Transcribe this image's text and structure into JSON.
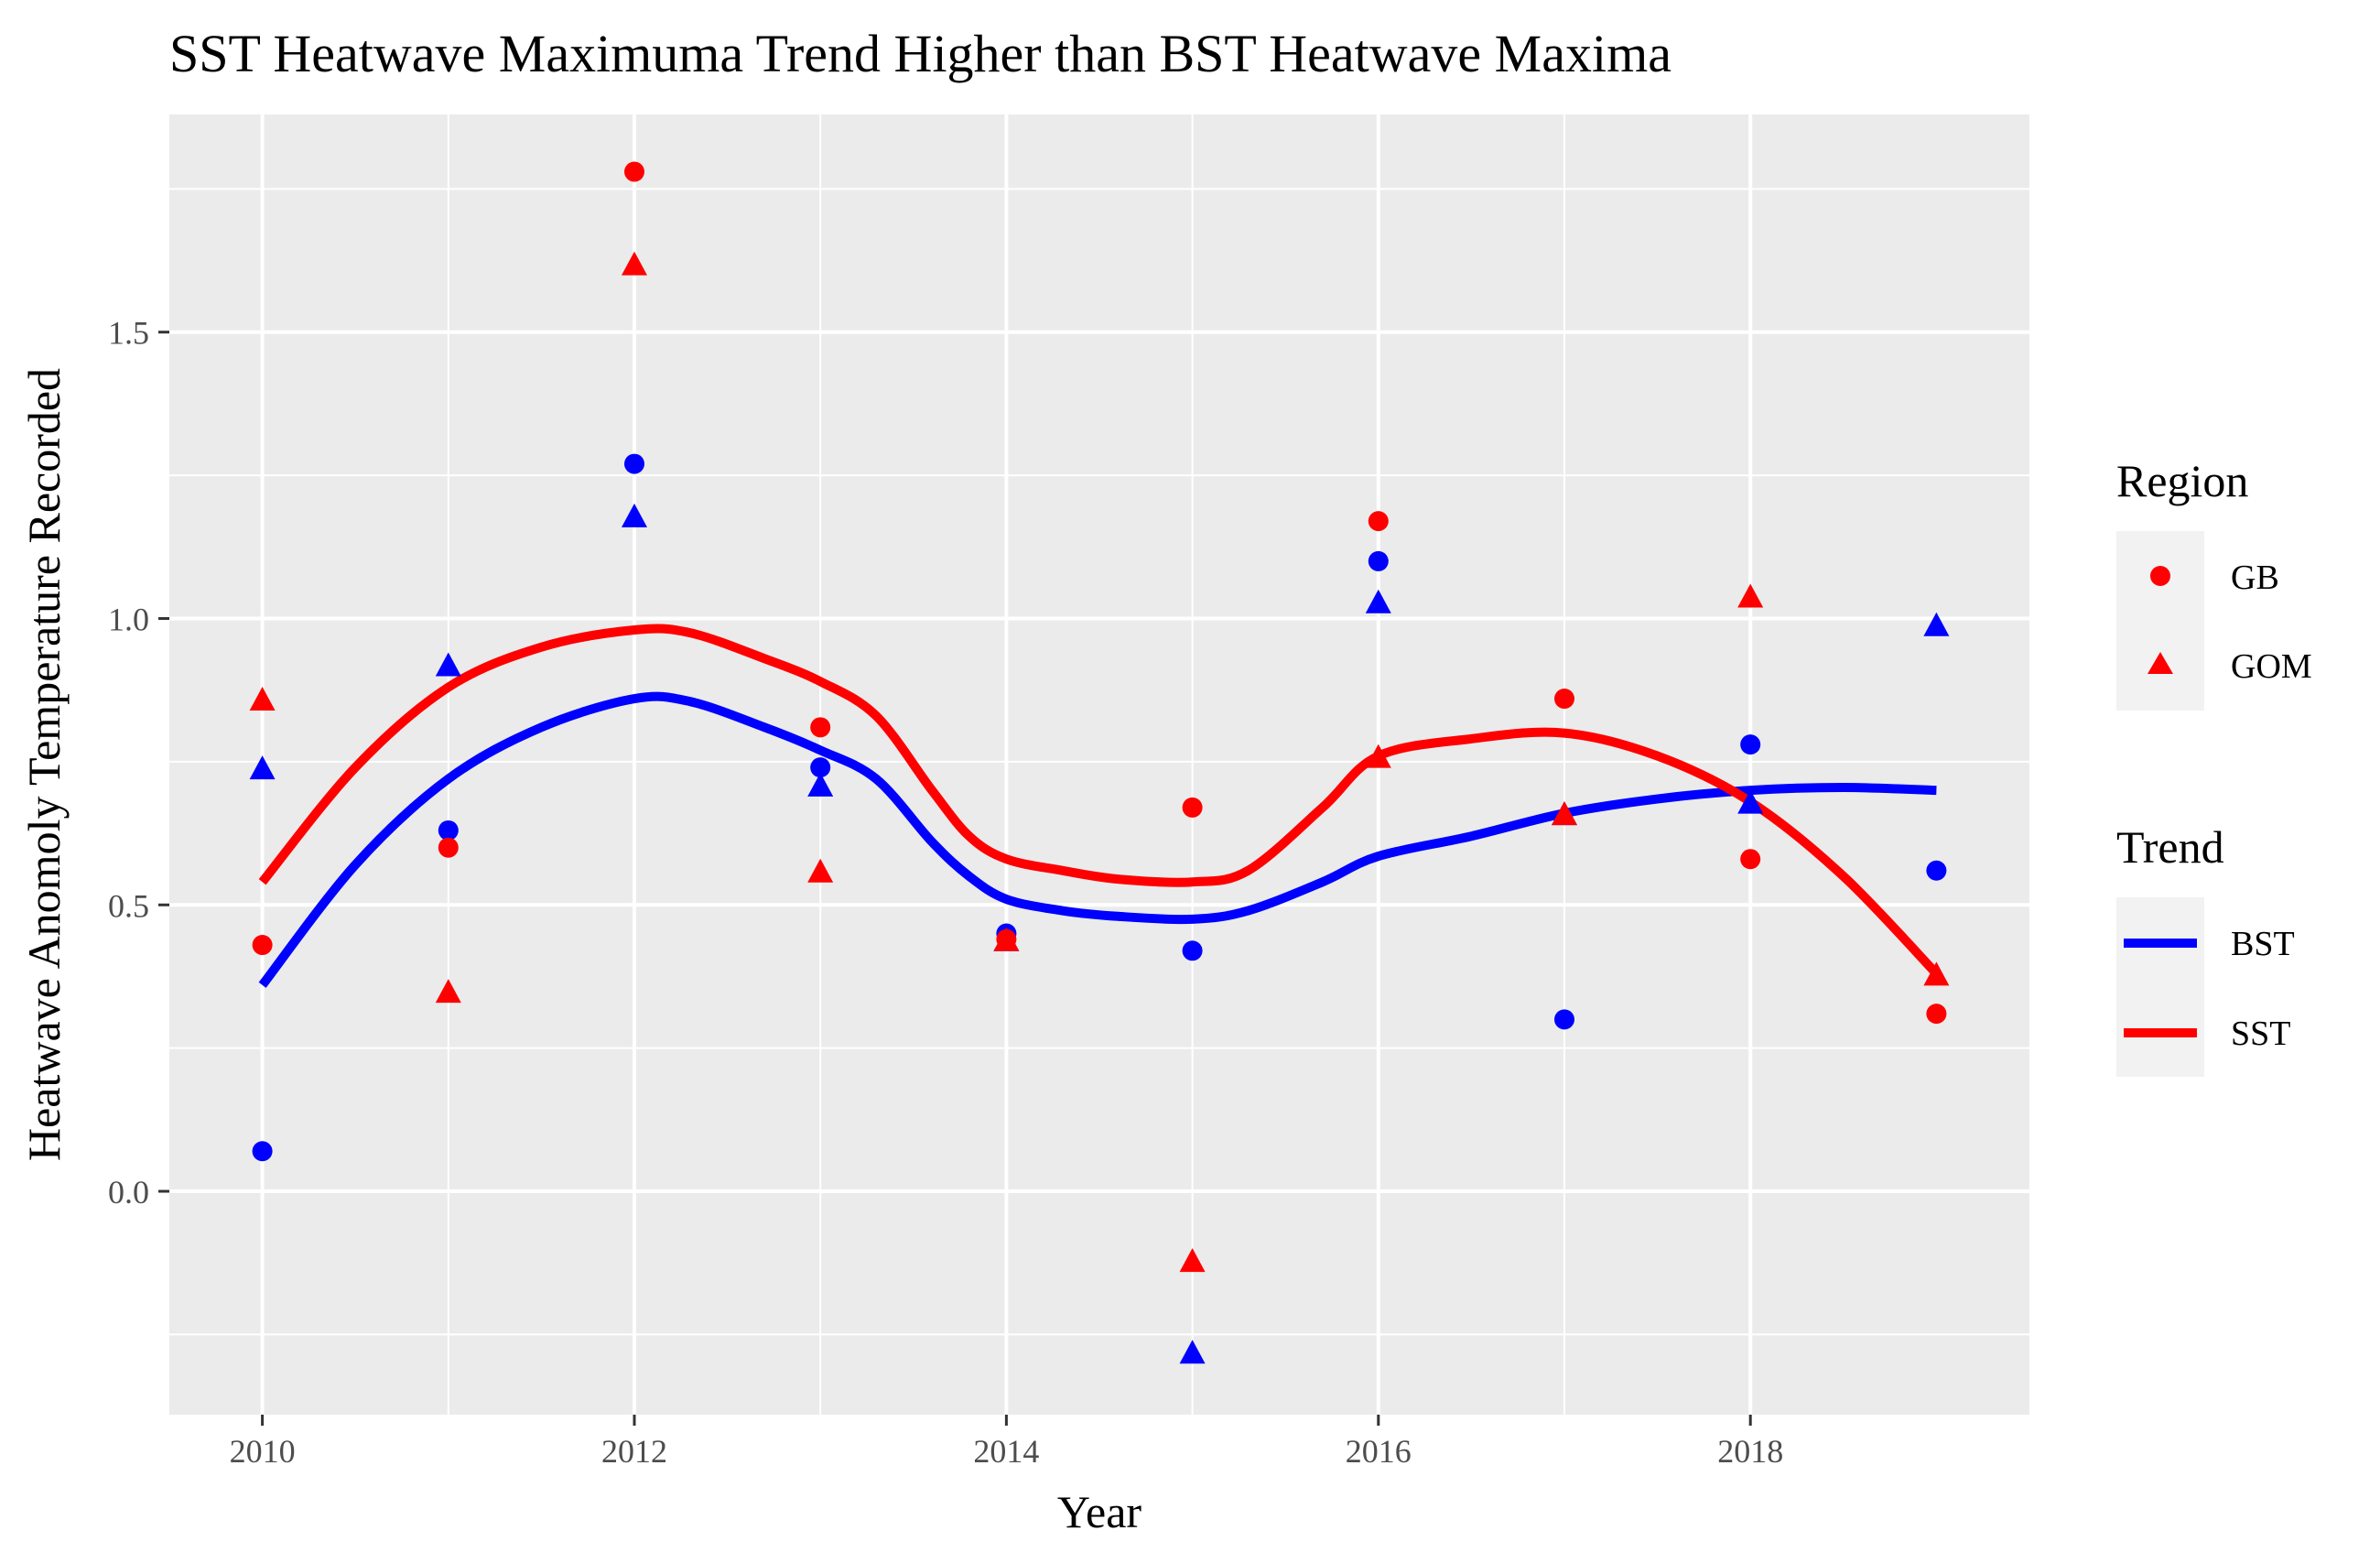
{
  "chart_data": {
    "type": "scatter",
    "title": "SST Heatwave Maximuma Trend Higher than BST Heatwave Maxima",
    "xlabel": "Year",
    "ylabel": "Heatwave Anomoly Temperature Recorded",
    "xlim": [
      2009.5,
      2019.5
    ],
    "ylim": [
      -0.39,
      1.88
    ],
    "x_ticks": [
      2010,
      2012,
      2014,
      2016,
      2018
    ],
    "x_tick_labels": [
      "2010",
      "2012",
      "2014",
      "2016",
      "2018"
    ],
    "y_ticks": [
      0.0,
      0.5,
      1.0,
      1.5
    ],
    "y_tick_labels": [
      "0.0",
      "0.5",
      "1.0",
      "1.5"
    ],
    "grid": true,
    "panel_background": "#ebebeb",
    "points": [
      {
        "region": "GB",
        "trend": "BST",
        "x": [
          2010,
          2011,
          2012,
          2013,
          2014,
          2015,
          2016,
          2017,
          2018,
          2019
        ],
        "y": [
          0.07,
          0.63,
          1.27,
          0.74,
          0.45,
          0.42,
          1.1,
          0.3,
          0.78,
          0.56
        ]
      },
      {
        "region": "GOM",
        "trend": "BST",
        "x": [
          2010,
          2011,
          2012,
          2013,
          2014,
          2015,
          2016,
          2017,
          2018,
          2019
        ],
        "y": [
          0.74,
          0.92,
          1.18,
          0.71,
          0.44,
          -0.28,
          1.03,
          0.66,
          0.68,
          0.99
        ]
      },
      {
        "region": "GB",
        "trend": "SST",
        "x": [
          2010,
          2011,
          2012,
          2013,
          2014,
          2015,
          2016,
          2017,
          2018,
          2019
        ],
        "y": [
          0.43,
          0.6,
          1.78,
          0.81,
          0.44,
          0.67,
          1.17,
          0.86,
          0.58,
          0.31
        ]
      },
      {
        "region": "GOM",
        "trend": "SST",
        "x": [
          2010,
          2011,
          2012,
          2013,
          2014,
          2015,
          2016,
          2017,
          2018,
          2019
        ],
        "y": [
          0.86,
          0.35,
          1.62,
          0.56,
          0.44,
          -0.12,
          0.76,
          0.66,
          1.04,
          0.38
        ]
      }
    ],
    "trend_lines": [
      {
        "name": "BST",
        "color": "#0000ff",
        "x": [
          2010,
          2010.5,
          2011,
          2011.5,
          2012,
          2012.3,
          2012.7,
          2013,
          2013.3,
          2013.6,
          2013.8,
          2014,
          2014.3,
          2014.6,
          2015,
          2015.3,
          2015.7,
          2016,
          2016.5,
          2017,
          2017.5,
          2018,
          2018.5,
          2019
        ],
        "y": [
          0.36,
          0.57,
          0.72,
          0.81,
          0.86,
          0.855,
          0.81,
          0.77,
          0.72,
          0.61,
          0.55,
          0.51,
          0.49,
          0.48,
          0.475,
          0.49,
          0.54,
          0.585,
          0.62,
          0.66,
          0.685,
          0.7,
          0.705,
          0.7
        ]
      },
      {
        "name": "SST",
        "color": "#ff0000",
        "x": [
          2010,
          2010.5,
          2011,
          2011.5,
          2012,
          2012.3,
          2012.7,
          2013,
          2013.3,
          2013.6,
          2013.8,
          2014,
          2014.3,
          2014.6,
          2015,
          2015.3,
          2015.7,
          2016,
          2016.5,
          2017,
          2017.5,
          2018,
          2018.5,
          2019
        ],
        "y": [
          0.54,
          0.74,
          0.88,
          0.95,
          0.98,
          0.975,
          0.93,
          0.89,
          0.83,
          0.7,
          0.62,
          0.58,
          0.56,
          0.545,
          0.54,
          0.56,
          0.67,
          0.76,
          0.79,
          0.8,
          0.76,
          0.68,
          0.55,
          0.38
        ]
      }
    ],
    "legend": {
      "placement": "right",
      "region_title": "Region",
      "region_items": [
        {
          "label": "GB",
          "shape": "circle"
        },
        {
          "label": "GOM",
          "shape": "triangle"
        }
      ],
      "trend_title": "Trend",
      "trend_items": [
        {
          "label": "BST",
          "color": "#0000ff"
        },
        {
          "label": "SST",
          "color": "#ff0000"
        }
      ]
    }
  }
}
